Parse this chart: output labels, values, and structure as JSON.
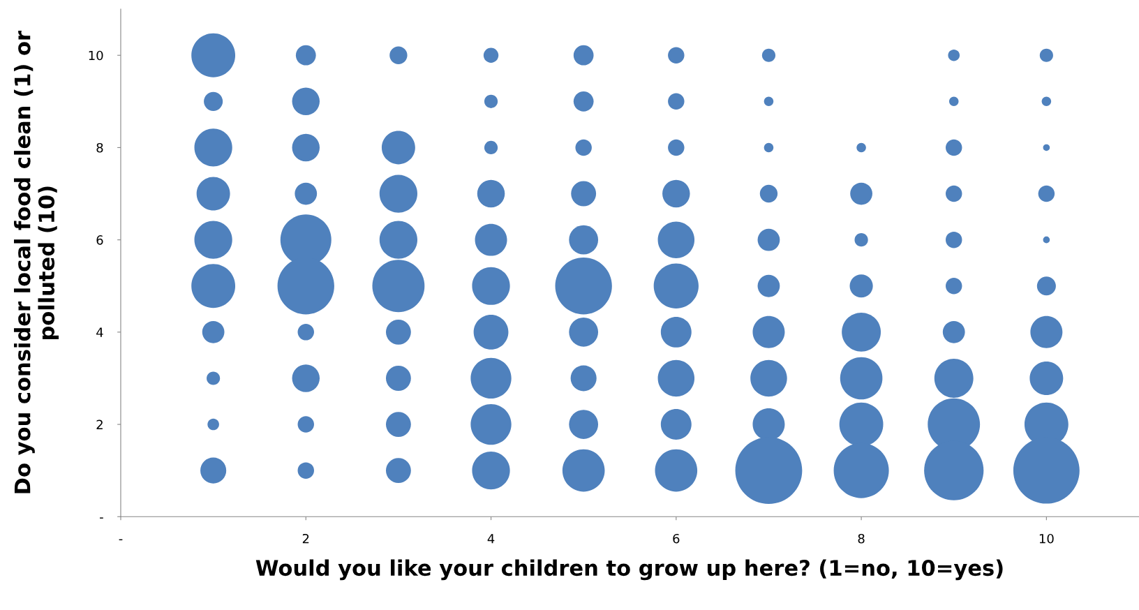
{
  "chart_data": {
    "type": "bubble",
    "xlabel": "Would you like your children to grow up here? (1=no, 10=yes)",
    "ylabel": "Do you consider local food clean (1) or polluted (10)",
    "xlim": [
      0,
      11
    ],
    "ylim": [
      0,
      11
    ],
    "xticks": [
      {
        "value": 0,
        "label": "-"
      },
      2,
      4,
      6,
      8,
      10
    ],
    "yticks": [
      {
        "value": 0,
        "label": "-"
      },
      2,
      4,
      6,
      8,
      10
    ],
    "grid": false,
    "legend": false,
    "series": [
      {
        "color": "#4f81bd",
        "x": [
          1,
          1,
          1,
          1,
          1,
          1,
          1,
          1,
          1,
          1,
          2,
          2,
          2,
          2,
          2,
          2,
          2,
          2,
          2,
          2,
          3,
          3,
          3,
          3,
          3,
          3,
          3,
          3,
          3,
          4,
          4,
          4,
          4,
          4,
          4,
          4,
          4,
          4,
          4,
          5,
          5,
          5,
          5,
          5,
          5,
          5,
          5,
          5,
          5,
          6,
          6,
          6,
          6,
          6,
          6,
          6,
          6,
          6,
          6,
          7,
          7,
          7,
          7,
          7,
          7,
          7,
          7,
          7,
          7,
          8,
          8,
          8,
          8,
          8,
          8,
          8,
          8,
          9,
          9,
          9,
          9,
          9,
          9,
          9,
          9,
          9,
          9,
          10,
          10,
          10,
          10,
          10,
          10,
          10,
          10,
          10,
          10
        ],
        "values": [
          10,
          9,
          8,
          7,
          6,
          5,
          4,
          3,
          2,
          1,
          10,
          9,
          8,
          7,
          6,
          5,
          4,
          3,
          2,
          1,
          10,
          8,
          7,
          6,
          5,
          4,
          3,
          2,
          1,
          10,
          9,
          8,
          7,
          6,
          5,
          4,
          3,
          2,
          1,
          10,
          9,
          8,
          7,
          6,
          5,
          4,
          3,
          2,
          1,
          10,
          9,
          8,
          7,
          6,
          5,
          4,
          3,
          2,
          1,
          10,
          9,
          8,
          7,
          6,
          5,
          4,
          3,
          2,
          1,
          8,
          7,
          6,
          5,
          4,
          3,
          2,
          1,
          10,
          9,
          8,
          7,
          6,
          5,
          4,
          3,
          2,
          1,
          10,
          9,
          8,
          7,
          6,
          5,
          4,
          3,
          2,
          1
        ],
        "sizes": [
          0.43,
          0.08,
          0.32,
          0.25,
          0.32,
          0.43,
          0.11,
          0.04,
          0.03,
          0.15,
          0.09,
          0.17,
          0.17,
          0.11,
          0.58,
          0.72,
          0.06,
          0.17,
          0.06,
          0.06,
          0.07,
          0.25,
          0.32,
          0.32,
          0.61,
          0.14,
          0.14,
          0.14,
          0.14,
          0.05,
          0.04,
          0.04,
          0.17,
          0.23,
          0.32,
          0.27,
          0.37,
          0.37,
          0.32,
          0.09,
          0.09,
          0.06,
          0.14,
          0.19,
          0.72,
          0.19,
          0.15,
          0.19,
          0.4,
          0.06,
          0.06,
          0.06,
          0.17,
          0.3,
          0.45,
          0.21,
          0.3,
          0.21,
          0.4,
          0.04,
          0.02,
          0.02,
          0.07,
          0.11,
          0.11,
          0.23,
          0.3,
          0.23,
          1,
          0.02,
          0.11,
          0.04,
          0.12,
          0.34,
          0.4,
          0.43,
          0.68,
          0.03,
          0.02,
          0.06,
          0.06,
          0.06,
          0.06,
          0.11,
          0.34,
          0.61,
          0.79,
          0.04,
          0.02,
          0.01,
          0.06,
          0.01,
          0.08,
          0.23,
          0.25,
          0.43,
          0.98
        ]
      }
    ]
  }
}
